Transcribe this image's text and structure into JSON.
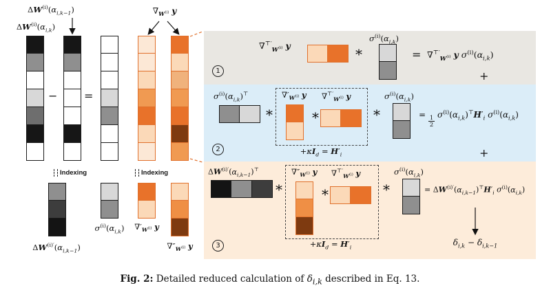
{
  "caption": {
    "tag": "Fig. 2:",
    "text": " Detailed reduced calculation of <i>δ<sub>i,k</sub></i> described in Eq. 13."
  },
  "labels": {
    "indexing": "Indexing"
  },
  "ops": {
    "star": "*",
    "plus": "+",
    "minus": "−",
    "equals": "="
  },
  "nums": {
    "n1": "1",
    "n2": "2",
    "n3": "3"
  },
  "math": {
    "dwk": "Δ<b><i>W</i></b><sup>(i)</sup>(<i>α<sub>i,k</sub></i>)",
    "dwk1": "Δ<b><i>W</i></b><sup>(i)</sup>(<i>α<sub>i,k−1</sub></i>)",
    "grad": "∇<sub><b><i>W</i></b><sup>(i)</sup></sub> <b><i>y</i></b>",
    "gradT": "∇<sup>⊤′</sup><sub><b><i>W</i></b><sup>(i)</sup></sub> <b><i>y</i></b>",
    "grad1": "∇′<sub><b><i>W</i></b><sup>(i)</sup></sub> <b><i>y</i></b>",
    "grad2": "∇″<sub><b><i>W</i></b><sup>(i)</sup></sub> <b><i>y</i></b>",
    "sigma": "<i>σ</i><sup>(i)</sup>(<i>α<sub>i,k</sub></i>)",
    "sigmaT": "<i>σ</i><sup>(i)</sup>(<i>α<sub>i,k</sub></i>)<sup>⊤</sup>",
    "dwp": "Δ<b><i>W</i></b><sup>(i)′</sup>(<i>α<sub>i,k−1</sub></i>)",
    "dwpT": "Δ<b><i>W</i></b><sup>(i)′</sup>(<i>α<sub>i,k−1</sub></i>)<sup>⊤</sup>",
    "kappa": "+<i>κ</i><b><i>I</i></b><sub><i>d</i></sub> = <b><i>H</i></b>′<sub><i>i</i></sub>",
    "delta": "<i>δ<sub>i,k</sub></i> − <i>δ<sub>i,k−1</sub></i>"
  },
  "eq": {
    "rhs1": "∇<sup>⊤′</sup><sub><b><i>W</i></b><sup>(i)</sup></sub> <b><i>y</i></b> <i>σ</i><sup>(i)</sup>(<i>α<sub>i,k</sub></i>)",
    "rhs2": "= <span class='frac'><i>1</i><i>2</i></span> <i>σ</i><sup>(i)</sup>(<i>α<sub>i,k</sub></i>)<sup>⊤</sup><b><i>H</i></b>′<sub><i>i</i></sub> <i>σ</i><sup>(i)</sup>(<i>α<sub>i,k</sub></i>)",
    "rhs3": "= Δ<b><i>W</i></b><sup>(i)′</sup>(<i>α<sub>i,k−1</sub></i>)<sup>⊤</sup><b><i>H</i></b>′<sub><i>i</i></sub> <i>σ</i><sup>(i)</sup>(<i>α<sub>i,k</sub></i>)"
  },
  "colors": {
    "row1_bg": "#e9e7e2",
    "row2_bg": "#dbedf8",
    "row3_bg": "#fdecda",
    "orange_border": "#e0702c",
    "gray_border": "#1a1a1a"
  },
  "vectors": {
    "dwk": [
      "#161616",
      "#8f8f8f",
      "#ffffff",
      "#d8d8d8",
      "#6e6e6e",
      "#161616",
      "#ffffff"
    ],
    "dwk1": [
      "#161616",
      "#8f8f8f",
      "#ffffff",
      "#ffffff",
      "#ffffff",
      "#161616",
      "#ffffff"
    ],
    "result": [
      "#ffffff",
      "#ffffff",
      "#ffffff",
      "#d8d8d8",
      "#8f8f8f",
      "#ffffff",
      "#ffffff"
    ],
    "grad1_full": [
      "#fce8d6",
      "#fce8d6",
      "#fbd9b8",
      "#f09a52",
      "#e8722a",
      "#fbd9b8",
      "#fce8d6"
    ],
    "grad2_full": [
      "#e8722a",
      "#fbd9b8",
      "#f0b27c",
      "#f09a52",
      "#e8722a",
      "#7e3a10",
      "#f09a52"
    ],
    "dw_prime": [
      "#8f8f8f",
      "#3d3d3d",
      "#141414"
    ],
    "sigma_col": [
      "#d8d8d8",
      "#8f8f8f"
    ],
    "sigma_row": [
      "#8f8f8f",
      "#d8d8d8"
    ],
    "grad1_short": [
      "#e8722a",
      "#fbd9b8"
    ],
    "grad2_short": [
      "#fbd9b8",
      "#ef8f45",
      "#7e3a10"
    ],
    "gradT_row": [
      "#fbd9b8",
      "#e8722a"
    ],
    "dwp_row": [
      "#141414",
      "#8f8f8f",
      "#3d3d3d"
    ]
  }
}
